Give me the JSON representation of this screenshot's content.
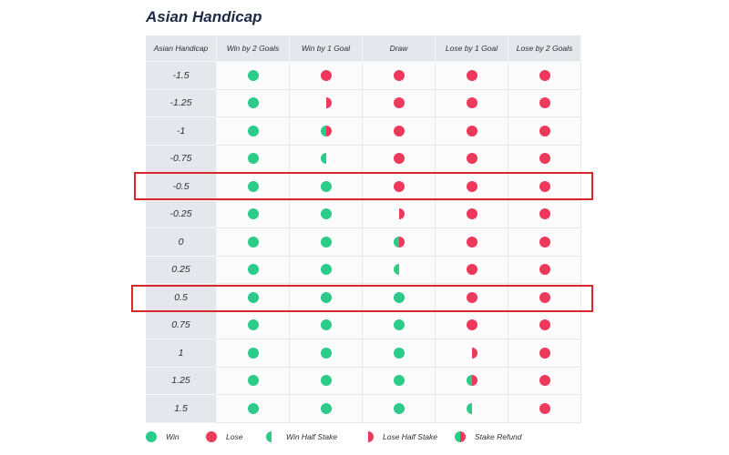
{
  "title": "Asian Handicap",
  "headers": [
    "Asian Handicap",
    "Win by 2 Goals",
    "Win by 1 Goal",
    "Draw",
    "Lose by 1 Goal",
    "Lose by 2 Goals"
  ],
  "rows": [
    {
      "handicap": "-1.5",
      "results": [
        "win",
        "lose",
        "lose",
        "lose",
        "lose"
      ]
    },
    {
      "handicap": "-1.25",
      "results": [
        "win",
        "losehalf",
        "lose",
        "lose",
        "lose"
      ]
    },
    {
      "handicap": "-1",
      "results": [
        "win",
        "refund",
        "lose",
        "lose",
        "lose"
      ]
    },
    {
      "handicap": "-0.75",
      "results": [
        "win",
        "winhalf",
        "lose",
        "lose",
        "lose"
      ]
    },
    {
      "handicap": "-0.5",
      "results": [
        "win",
        "win",
        "lose",
        "lose",
        "lose"
      ],
      "highlighted": true
    },
    {
      "handicap": "-0.25",
      "results": [
        "win",
        "win",
        "losehalf",
        "lose",
        "lose"
      ]
    },
    {
      "handicap": "0",
      "results": [
        "win",
        "win",
        "refund",
        "lose",
        "lose"
      ]
    },
    {
      "handicap": "0.25",
      "results": [
        "win",
        "win",
        "winhalf",
        "lose",
        "lose"
      ]
    },
    {
      "handicap": "0.5",
      "results": [
        "win",
        "win",
        "win",
        "lose",
        "lose"
      ],
      "highlighted": true
    },
    {
      "handicap": "0.75",
      "results": [
        "win",
        "win",
        "win",
        "lose",
        "lose"
      ]
    },
    {
      "handicap": "1",
      "results": [
        "win",
        "win",
        "win",
        "losehalf",
        "lose"
      ]
    },
    {
      "handicap": "1.25",
      "results": [
        "win",
        "win",
        "win",
        "refund",
        "lose"
      ]
    },
    {
      "handicap": "1.5",
      "results": [
        "win",
        "win",
        "win",
        "winhalf",
        "lose"
      ]
    }
  ],
  "legend": {
    "win": "Win",
    "lose": "Lose",
    "winhalf": "Win Half Stake",
    "losehalf": "Lose Half Stake",
    "refund": "Stake Refund"
  },
  "colors": {
    "win": "#2ccb8a",
    "lose": "#ec3a5c",
    "highlight": "#d9262b"
  }
}
